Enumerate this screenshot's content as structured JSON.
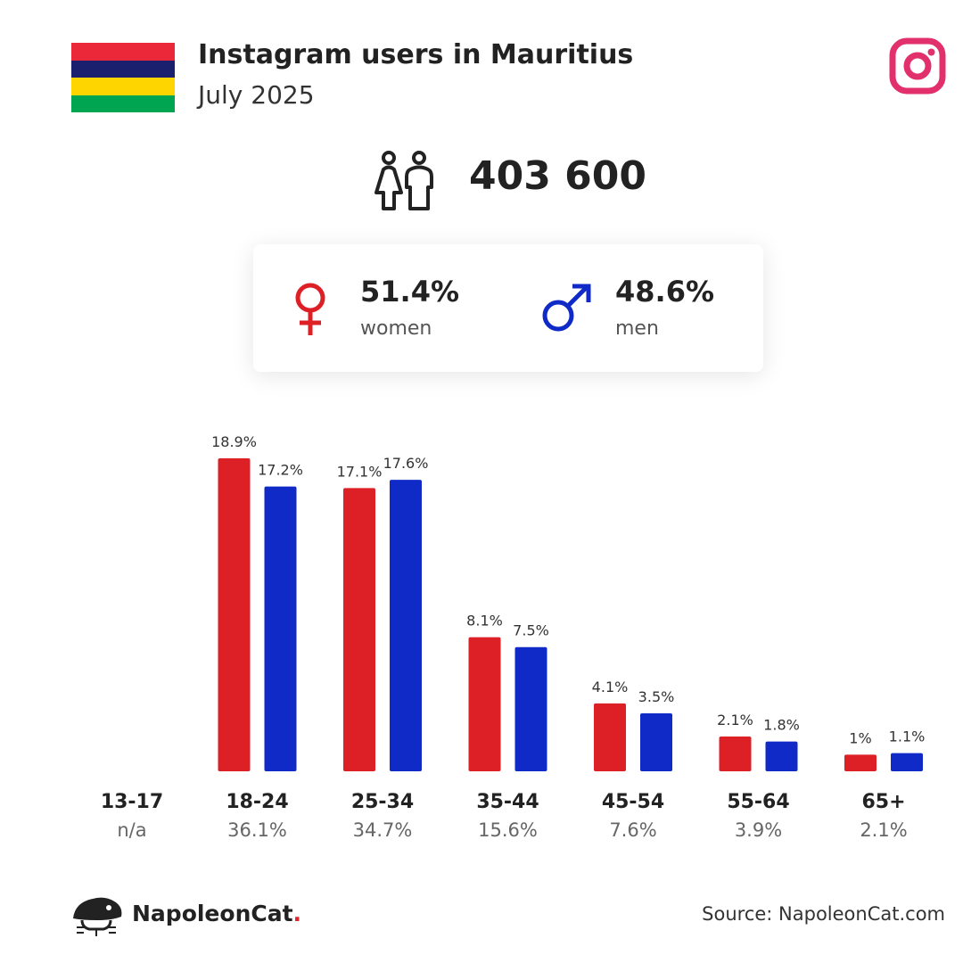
{
  "header": {
    "title": "Instagram users in Mauritius",
    "subtitle": "July 2025"
  },
  "flag": {
    "stripes": [
      "#ea2839",
      "#1a206d",
      "#ffd500",
      "#00a551"
    ]
  },
  "icons": {
    "instagram": "instagram-logo-icon",
    "people": "women-and-men-icon",
    "female": "female-symbol-icon",
    "male": "male-symbol-icon",
    "brand": "napoleoncat-logo-icon"
  },
  "total": {
    "value": "403 600"
  },
  "gender": {
    "women": {
      "percent": "51.4%",
      "label": "women",
      "color": "#dd1f26"
    },
    "men": {
      "percent": "48.6%",
      "label": "men",
      "color": "#0f2ac6"
    }
  },
  "chart_data": {
    "type": "bar",
    "categories": [
      "13-17",
      "18-24",
      "25-34",
      "35-44",
      "45-54",
      "55-64",
      "65+"
    ],
    "totals": [
      "n/a",
      "36.1%",
      "34.7%",
      "15.6%",
      "7.6%",
      "3.9%",
      "2.1%"
    ],
    "series": [
      {
        "color": "#dd1f26",
        "values": [
          null,
          18.9,
          17.1,
          8.1,
          4.1,
          2.1,
          1
        ],
        "labels": [
          "",
          "18.9%",
          "17.1%",
          "8.1%",
          "4.1%",
          "2.1%",
          "1%"
        ]
      },
      {
        "color": "#0f2ac6",
        "values": [
          null,
          17.2,
          17.6,
          7.5,
          3.5,
          1.8,
          1.1
        ],
        "labels": [
          "",
          "17.2%",
          "17.6%",
          "7.5%",
          "3.5%",
          "1.8%",
          "1.1%"
        ]
      }
    ],
    "ylim": [
      0,
      18.9
    ],
    "grid": false
  },
  "footer": {
    "brand_name": "NapoleonCat",
    "brand_dot": ".",
    "source": "Source: NapoleonCat.com"
  }
}
